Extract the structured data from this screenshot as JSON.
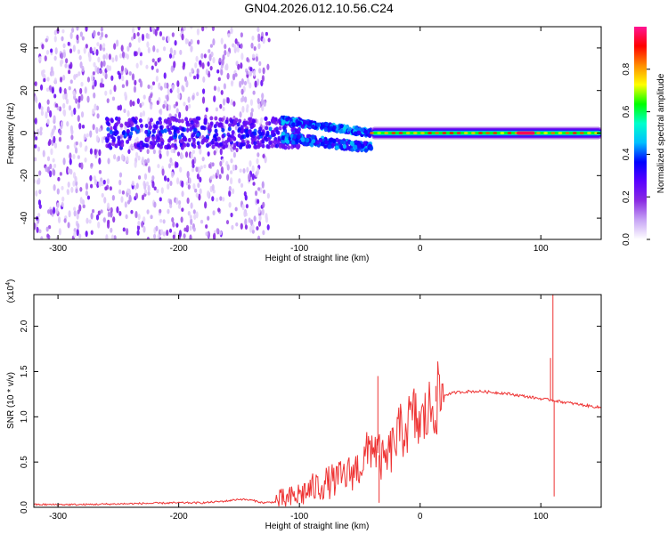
{
  "page": {
    "title": "GN04.2026.012.10.56.C24"
  },
  "chart_data": [
    {
      "type": "heatmap",
      "title": "GN04.2026.012.10.56.C24",
      "xlabel": "Height of straight line (km)",
      "ylabel": "Frequency (Hz)",
      "xlim": [
        -320,
        150
      ],
      "ylim": [
        -50,
        50
      ],
      "xticks": [
        -300,
        -200,
        -100,
        0,
        100
      ],
      "yticks": [
        -40,
        -20,
        0,
        20,
        40
      ],
      "colorbar": {
        "label": "Normalized spectral amplitude",
        "range": [
          0.0,
          1.0
        ],
        "ticks": [
          0.0,
          0.2,
          0.4,
          0.6,
          0.8
        ],
        "tick_labels": [
          "0.0",
          "0.2",
          "0.4",
          "0.6",
          "0.8"
        ],
        "colors": [
          "#ffffff",
          "#c7a4f5",
          "#8a2be2",
          "#5a00ff",
          "#0000ff",
          "#00bfff",
          "#00ffcc",
          "#00ff00",
          "#ffff00",
          "#ff8c00",
          "#ff0000",
          "#ff1493"
        ]
      },
      "features": {
        "noise_region_x": [
          -320,
          -125
        ],
        "noisy_band_x": [
          -260,
          -100
        ],
        "signal_split_x": [
          -115,
          -40
        ],
        "upper_branch_freq": [
          6,
          0
        ],
        "lower_branch_freq": [
          -2,
          -7
        ],
        "steady_carrier_x": [
          -40,
          150
        ],
        "carrier_freq": 0,
        "peak_amplitude_x": [
          80,
          95
        ]
      }
    },
    {
      "type": "line",
      "xlabel": "Height of straight line (km)",
      "ylabel": "SNR (10 * v/v)",
      "multiplier_label": "(x10",
      "multiplier_exponent": "4",
      "multiplier_close": ")",
      "xlim": [
        -320,
        150
      ],
      "ylim": [
        0,
        2.35
      ],
      "xticks": [
        -300,
        -200,
        -100,
        0,
        100
      ],
      "yticks": [
        0.0,
        0.5,
        1.0,
        1.5,
        2.0
      ],
      "ytick_labels": [
        "0.0",
        "0.5",
        "1.0",
        "1.5",
        "2.0"
      ],
      "series": [
        {
          "color": "#ee3333",
          "x": [
            -320,
            -280,
            -240,
            -200,
            -180,
            -160,
            -150,
            -140,
            -130,
            -120,
            -110,
            -100,
            -90,
            -80,
            -70,
            -60,
            -50,
            -45,
            -40,
            -35,
            -30,
            -25,
            -20,
            -15,
            -10,
            -5,
            0,
            5,
            10,
            15,
            20,
            30,
            40,
            50,
            60,
            70,
            80,
            90,
            100,
            105,
            108,
            110,
            112,
            115,
            120,
            130,
            140,
            150
          ],
          "y": [
            0.03,
            0.03,
            0.04,
            0.05,
            0.05,
            0.07,
            0.09,
            0.08,
            0.05,
            0.06,
            0.08,
            0.14,
            0.2,
            0.26,
            0.3,
            0.36,
            0.45,
            0.55,
            0.72,
            0.6,
            0.48,
            0.6,
            0.75,
            0.85,
            0.92,
            1.0,
            0.9,
            1.0,
            1.12,
            1.2,
            1.24,
            1.27,
            1.28,
            1.28,
            1.27,
            1.26,
            1.24,
            1.22,
            1.2,
            1.19,
            1.19,
            1.18,
            1.18,
            1.17,
            1.16,
            1.14,
            1.12,
            1.1
          ],
          "spikes": [
            {
              "x": -35,
              "y": 1.45
            },
            {
              "x": -34,
              "y": 0.05
            },
            {
              "x": 13,
              "y": 1.34
            },
            {
              "x": 108,
              "y": 1.65
            },
            {
              "x": 110,
              "y": 2.35
            },
            {
              "x": 111,
              "y": 0.12
            }
          ]
        }
      ]
    }
  ]
}
